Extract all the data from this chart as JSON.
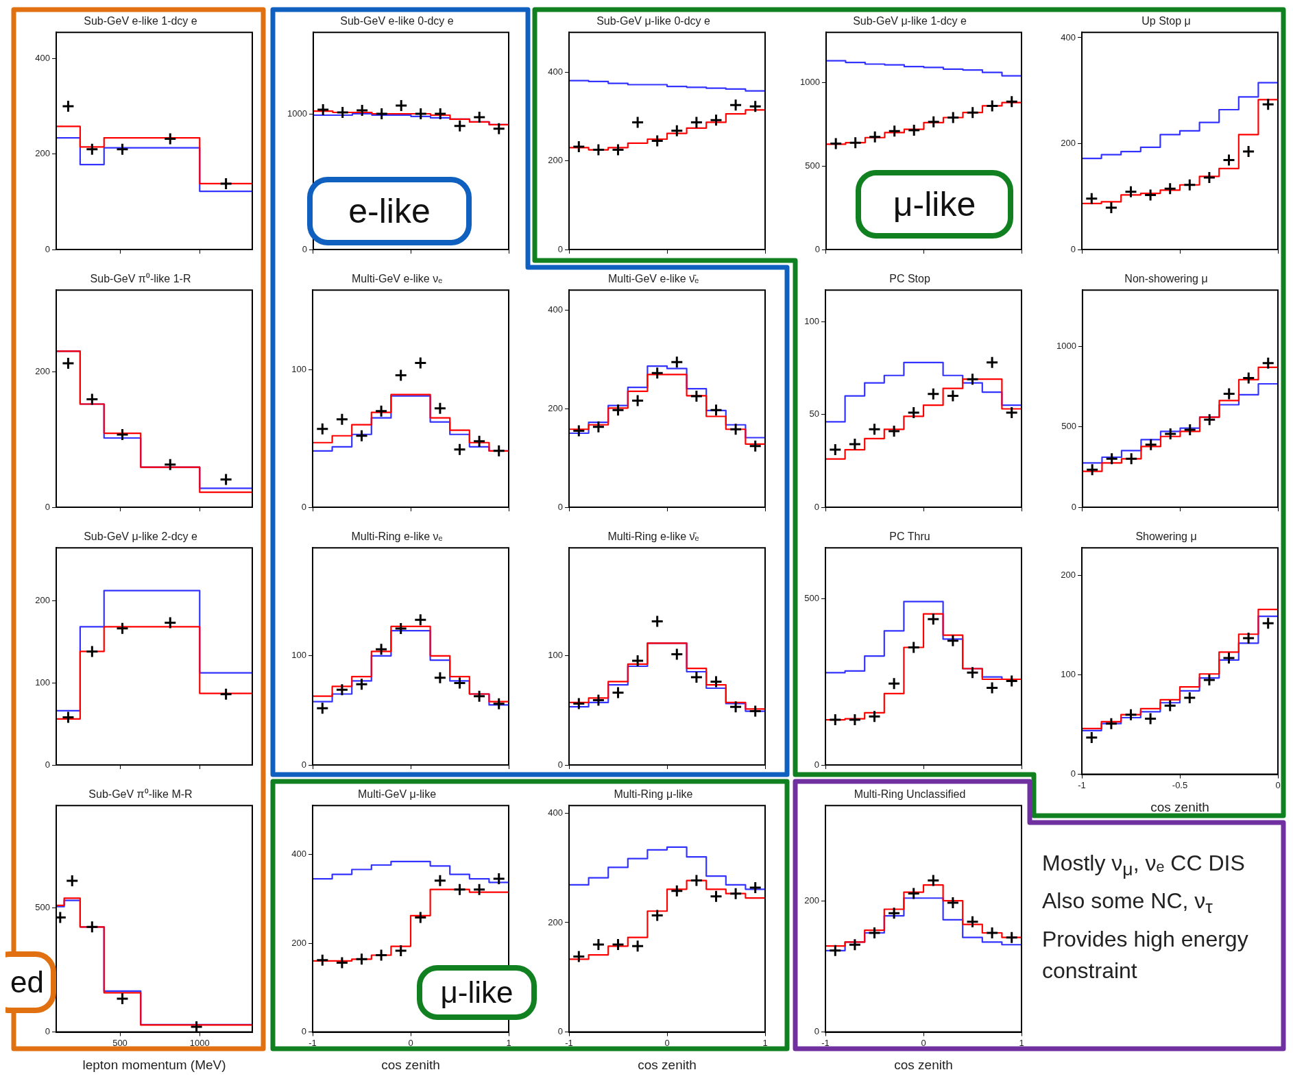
{
  "chart_data": [
    {
      "type": "histogram",
      "title": "Sub-GeV e-like 1-dcy e",
      "bins": [
        100,
        250,
        400,
        630,
        1000,
        1330
      ],
      "xlim": [
        100,
        1330
      ],
      "xticks": [
        500,
        1000
      ],
      "ylim": [
        0,
        455
      ],
      "yticks": [
        0,
        200,
        400
      ],
      "tick_labels": "y",
      "marker": "cross",
      "series": [
        {
          "color": "#3333ff",
          "values": [
            234,
            178,
            213,
            213,
            122
          ]
        },
        {
          "color": "#ff0000",
          "values": [
            258,
            215,
            234,
            234,
            138
          ]
        },
        {
          "type": "scatter",
          "color": "#000000",
          "x": [
            175,
            325,
            515,
            815,
            1165
          ],
          "values": [
            300,
            210,
            210,
            232,
            138
          ]
        }
      ]
    },
    {
      "type": "histogram",
      "title": "Sub-GeV e-like 0-dcy e",
      "bins": [
        -1,
        -0.8,
        -0.6,
        -0.4,
        -0.2,
        0,
        0.2,
        0.4,
        0.6,
        0.8,
        1
      ],
      "xlim": [
        -1,
        1
      ],
      "xticks": [
        -1,
        0,
        1
      ],
      "ylim": [
        0,
        1600
      ],
      "yticks": [
        0,
        1000
      ],
      "tick_labels": "y",
      "marker": "cross",
      "annotations": [
        "e-like"
      ],
      "series": [
        {
          "color": "#3333ff",
          "values": [
            990,
            990,
            1000,
            990,
            990,
            980,
            970,
            960,
            940,
            920
          ]
        },
        {
          "color": "#ff0000",
          "values": [
            1020,
            1010,
            1010,
            1000,
            1000,
            1000,
            990,
            960,
            940,
            920
          ]
        },
        {
          "type": "scatter",
          "color": "#000000",
          "x": [
            -0.9,
            -0.7,
            -0.5,
            -0.3,
            -0.1,
            0.1,
            0.3,
            0.5,
            0.7,
            0.9
          ],
          "values": [
            1030,
            1010,
            1025,
            1000,
            1060,
            1000,
            1000,
            910,
            975,
            890
          ]
        }
      ]
    },
    {
      "type": "histogram",
      "title": "Sub-GeV μ-like 0-dcy e",
      "bins": [
        -1,
        -0.8,
        -0.6,
        -0.4,
        -0.2,
        0,
        0.2,
        0.4,
        0.6,
        0.8,
        1
      ],
      "xlim": [
        -1,
        1
      ],
      "xticks": [
        -1,
        0,
        1
      ],
      "ylim": [
        0,
        490
      ],
      "yticks": [
        0,
        200,
        400
      ],
      "tick_labels": "y",
      "marker": "cross",
      "series": [
        {
          "color": "#3333ff",
          "values": [
            381,
            379,
            375,
            372,
            372,
            368,
            366,
            364,
            362,
            358
          ]
        },
        {
          "color": "#ff0000",
          "values": [
            230,
            225,
            230,
            240,
            249,
            262,
            274,
            287,
            306,
            315
          ]
        },
        {
          "type": "scatter",
          "color": "#000000",
          "x": [
            -0.9,
            -0.7,
            -0.5,
            -0.3,
            -0.1,
            0.1,
            0.3,
            0.5,
            0.7,
            0.9
          ],
          "values": [
            232,
            225,
            225,
            287,
            245,
            268,
            287,
            292,
            326,
            323
          ]
        }
      ]
    },
    {
      "type": "histogram",
      "title": "Sub-GeV μ-like 1-dcy e",
      "bins": [
        -1,
        -0.8,
        -0.6,
        -0.4,
        -0.2,
        0,
        0.2,
        0.4,
        0.6,
        0.8,
        1
      ],
      "xlim": [
        -1,
        1
      ],
      "xticks": [
        -1,
        0,
        1
      ],
      "ylim": [
        0,
        1300
      ],
      "yticks": [
        0,
        500,
        1000
      ],
      "tick_labels": "y",
      "marker": "cross",
      "annotations": [
        "μ-like"
      ],
      "series": [
        {
          "color": "#3333ff",
          "values": [
            1130,
            1120,
            1110,
            1105,
            1095,
            1090,
            1080,
            1075,
            1060,
            1040
          ]
        },
        {
          "color": "#ff0000",
          "values": [
            630,
            640,
            670,
            700,
            720,
            760,
            790,
            820,
            860,
            880
          ]
        },
        {
          "type": "scatter",
          "color": "#000000",
          "x": [
            -0.9,
            -0.7,
            -0.5,
            -0.3,
            -0.1,
            0.1,
            0.3,
            0.5,
            0.7,
            0.9
          ],
          "values": [
            634,
            639,
            674,
            709,
            714,
            764,
            790,
            820,
            860,
            885
          ]
        }
      ]
    },
    {
      "type": "histogram",
      "title": "Up Stop μ",
      "bins": [
        -1,
        -0.9,
        -0.8,
        -0.7,
        -0.6,
        -0.5,
        -0.4,
        -0.3,
        -0.2,
        -0.1,
        0
      ],
      "xlim": [
        -1,
        0
      ],
      "xticks": [
        -1,
        -0.5,
        0
      ],
      "ylim": [
        0,
        410
      ],
      "yticks": [
        0,
        200,
        400
      ],
      "tick_labels": "y",
      "marker": "cross",
      "series": [
        {
          "color": "#3333ff",
          "values": [
            172,
            179,
            185,
            193,
            217,
            224,
            240,
            264,
            288,
            315
          ]
        },
        {
          "color": "#ff0000",
          "values": [
            87,
            90,
            103,
            106,
            112,
            122,
            138,
            153,
            217,
            283
          ]
        },
        {
          "type": "scatter",
          "color": "#000000",
          "x": [
            -0.95,
            -0.85,
            -0.75,
            -0.65,
            -0.55,
            -0.45,
            -0.35,
            -0.25,
            -0.15,
            -0.05
          ],
          "values": [
            96,
            79,
            109,
            103,
            115,
            122,
            136,
            169,
            185,
            274
          ]
        }
      ]
    },
    {
      "type": "histogram",
      "title": "Sub-GeV π⁰-like 1-R",
      "bins": [
        100,
        250,
        400,
        630,
        1000,
        1330
      ],
      "xlim": [
        100,
        1330
      ],
      "xticks": [
        500,
        1000
      ],
      "ylim": [
        0,
        320
      ],
      "yticks": [
        0,
        200
      ],
      "tick_labels": "y",
      "marker": "cross",
      "series": [
        {
          "color": "#3333ff",
          "values": [
            230,
            152,
            102,
            59,
            28
          ]
        },
        {
          "color": "#ff0000",
          "values": [
            230,
            152,
            109,
            59,
            22
          ]
        },
        {
          "type": "scatter",
          "color": "#000000",
          "x": [
            175,
            325,
            515,
            815,
            1165
          ],
          "values": [
            212,
            159,
            107,
            63,
            41
          ]
        }
      ]
    },
    {
      "type": "histogram",
      "title": "Multi-GeV e-like νₑ",
      "bins": [
        -1,
        -0.8,
        -0.6,
        -0.4,
        -0.2,
        0,
        0.2,
        0.4,
        0.6,
        0.8,
        1
      ],
      "xlim": [
        -1,
        1
      ],
      "xticks": [
        -1,
        0,
        1
      ],
      "ylim": [
        0,
        158
      ],
      "yticks": [
        0,
        100
      ],
      "tick_labels": "y",
      "marker": "cross",
      "series": [
        {
          "color": "#3333ff",
          "values": [
            41,
            44,
            53,
            65,
            81,
            81,
            62,
            53,
            44,
            41
          ]
        },
        {
          "color": "#ff0000",
          "values": [
            47,
            52,
            60,
            69,
            82,
            82,
            65,
            56,
            47,
            41
          ]
        },
        {
          "type": "scatter",
          "color": "#000000",
          "x": [
            -0.9,
            -0.7,
            -0.5,
            -0.3,
            -0.1,
            0.1,
            0.3,
            0.5,
            0.7,
            0.9
          ],
          "values": [
            57,
            64,
            52,
            70,
            96,
            105,
            72,
            42,
            48,
            41
          ]
        }
      ]
    },
    {
      "type": "histogram",
      "title": "Multi-GeV e-like ν̄ₑ",
      "bins": [
        -1,
        -0.8,
        -0.6,
        -0.4,
        -0.2,
        0,
        0.2,
        0.4,
        0.6,
        0.8,
        1
      ],
      "xlim": [
        -1,
        1
      ],
      "xticks": [
        -1,
        0,
        1
      ],
      "ylim": [
        0,
        440
      ],
      "yticks": [
        0,
        200,
        400
      ],
      "tick_labels": "y",
      "marker": "cross",
      "series": [
        {
          "color": "#3333ff",
          "values": [
            150,
            172,
            206,
            243,
            286,
            281,
            240,
            196,
            167,
            141
          ]
        },
        {
          "color": "#ff0000",
          "values": [
            158,
            167,
            201,
            235,
            269,
            269,
            226,
            184,
            158,
            128
          ]
        },
        {
          "type": "scatter",
          "color": "#000000",
          "x": [
            -0.9,
            -0.7,
            -0.5,
            -0.3,
            -0.1,
            0.1,
            0.3,
            0.5,
            0.7,
            0.9
          ],
          "values": [
            155,
            163,
            197,
            216,
            272,
            294,
            225,
            197,
            158,
            124
          ]
        }
      ]
    },
    {
      "type": "histogram",
      "title": "PC Stop",
      "bins": [
        -1,
        -0.8,
        -0.6,
        -0.4,
        -0.2,
        0,
        0.2,
        0.4,
        0.6,
        0.8,
        1
      ],
      "xlim": [
        -1,
        1
      ],
      "xticks": [
        -1,
        0,
        1
      ],
      "ylim": [
        0,
        117
      ],
      "yticks": [
        0,
        50,
        100
      ],
      "tick_labels": "y",
      "marker": "cross",
      "series": [
        {
          "color": "#3333ff",
          "values": [
            46,
            60,
            67,
            71,
            78,
            78,
            71,
            67,
            62,
            55
          ]
        },
        {
          "color": "#ff0000",
          "values": [
            26,
            31,
            37,
            42,
            49,
            55,
            64,
            69,
            69,
            53
          ]
        },
        {
          "type": "scatter",
          "color": "#000000",
          "x": [
            -0.9,
            -0.7,
            -0.5,
            -0.3,
            -0.1,
            0.1,
            0.3,
            0.5,
            0.7,
            0.9
          ],
          "values": [
            31,
            34,
            42,
            41,
            51,
            61,
            60,
            69,
            78,
            51
          ]
        }
      ]
    },
    {
      "type": "histogram",
      "title": "Non-showering μ",
      "bins": [
        -1,
        -0.9,
        -0.8,
        -0.7,
        -0.6,
        -0.5,
        -0.4,
        -0.3,
        -0.2,
        -0.1,
        0
      ],
      "xlim": [
        -1,
        0
      ],
      "xticks": [
        -1,
        -0.5,
        0
      ],
      "ylim": [
        0,
        1350
      ],
      "yticks": [
        0,
        500,
        1000
      ],
      "tick_labels": "y",
      "marker": "cross",
      "series": [
        {
          "color": "#3333ff",
          "values": [
            275,
            311,
            352,
            420,
            471,
            492,
            560,
            637,
            699,
            767
          ]
        },
        {
          "color": "#ff0000",
          "values": [
            223,
            275,
            301,
            378,
            440,
            471,
            560,
            663,
            793,
            870
          ]
        },
        {
          "type": "scatter",
          "color": "#000000",
          "x": [
            -0.95,
            -0.85,
            -0.75,
            -0.65,
            -0.55,
            -0.45,
            -0.35,
            -0.25,
            -0.15,
            -0.05
          ],
          "values": [
            233,
            301,
            301,
            389,
            456,
            482,
            544,
            705,
            803,
            896
          ]
        }
      ]
    },
    {
      "type": "histogram",
      "title": "Sub-GeV μ-like 2-dcy e",
      "bins": [
        100,
        250,
        400,
        630,
        1000,
        1330
      ],
      "xlim": [
        100,
        1330
      ],
      "xticks": [
        500,
        1000
      ],
      "ylim": [
        0,
        264
      ],
      "yticks": [
        0,
        100,
        200
      ],
      "tick_labels": "y",
      "marker": "cross",
      "series": [
        {
          "color": "#3333ff",
          "values": [
            66,
            168,
            212,
            212,
            112
          ]
        },
        {
          "color": "#ff0000",
          "values": [
            56,
            138,
            168,
            168,
            87
          ]
        },
        {
          "type": "scatter",
          "color": "#000000",
          "x": [
            175,
            325,
            515,
            815,
            1165
          ],
          "values": [
            58,
            138,
            166,
            173,
            86
          ]
        }
      ]
    },
    {
      "type": "histogram",
      "title": "Multi-Ring e-like νₑ",
      "bins": [
        -1,
        -0.8,
        -0.6,
        -0.4,
        -0.2,
        0,
        0.2,
        0.4,
        0.6,
        0.8,
        1
      ],
      "xlim": [
        -1,
        1
      ],
      "xticks": [
        -1,
        0,
        1
      ],
      "ylim": [
        0,
        199
      ],
      "yticks": [
        0,
        100
      ],
      "tick_labels": "y",
      "marker": "cross",
      "series": [
        {
          "color": "#3333ff",
          "values": [
            58,
            65,
            77,
            100,
            123,
            123,
            96,
            77,
            65,
            55
          ]
        },
        {
          "color": "#ff0000",
          "values": [
            63,
            72,
            81,
            104,
            127,
            127,
            100,
            81,
            65,
            58
          ]
        },
        {
          "type": "scatter",
          "color": "#000000",
          "x": [
            -0.9,
            -0.7,
            -0.5,
            -0.3,
            -0.1,
            0.1,
            0.3,
            0.5,
            0.7,
            0.9
          ],
          "values": [
            52,
            69,
            74,
            106,
            125,
            133,
            80,
            75,
            63,
            56
          ]
        }
      ]
    },
    {
      "type": "histogram",
      "title": "Multi-Ring e-like ν̄ₑ",
      "bins": [
        -1,
        -0.8,
        -0.6,
        -0.4,
        -0.2,
        0,
        0.2,
        0.4,
        0.6,
        0.8,
        1
      ],
      "xlim": [
        -1,
        1
      ],
      "xticks": [
        -1,
        0,
        1
      ],
      "ylim": [
        0,
        198
      ],
      "yticks": [
        0,
        100
      ],
      "tick_labels": "y",
      "marker": "cross",
      "series": [
        {
          "color": "#3333ff",
          "values": [
            53,
            57,
            73,
            90,
            111,
            111,
            85,
            70,
            56,
            49
          ]
        },
        {
          "color": "#ff0000",
          "values": [
            57,
            61,
            76,
            92,
            111,
            111,
            88,
            73,
            57,
            51
          ]
        },
        {
          "type": "scatter",
          "color": "#000000",
          "x": [
            -0.9,
            -0.7,
            -0.5,
            -0.3,
            -0.1,
            0.1,
            0.3,
            0.5,
            0.7,
            0.9
          ],
          "values": [
            56,
            59,
            66,
            95,
            131,
            101,
            80,
            76,
            53,
            49
          ]
        }
      ]
    },
    {
      "type": "histogram",
      "title": "PC Thru",
      "bins": [
        -1,
        -0.8,
        -0.6,
        -0.4,
        -0.2,
        0,
        0.2,
        0.4,
        0.6,
        0.8,
        1
      ],
      "xlim": [
        -1,
        1
      ],
      "xticks": [
        -1,
        0,
        1
      ],
      "ylim": [
        0,
        654
      ],
      "yticks": [
        0,
        500
      ],
      "tick_labels": "y",
      "marker": "cross",
      "series": [
        {
          "color": "#3333ff",
          "values": [
            278,
            283,
            328,
            404,
            492,
            492,
            379,
            290,
            265,
            258
          ]
        },
        {
          "color": "#ff0000",
          "values": [
            136,
            139,
            157,
            215,
            354,
            455,
            391,
            290,
            258,
            258
          ]
        },
        {
          "type": "scatter",
          "color": "#000000",
          "x": [
            -0.9,
            -0.7,
            -0.5,
            -0.3,
            -0.1,
            0.1,
            0.3,
            0.5,
            0.7,
            0.9
          ],
          "values": [
            136,
            136,
            146,
            245,
            354,
            439,
            374,
            278,
            232,
            253
          ]
        }
      ]
    },
    {
      "type": "histogram",
      "title": "Showering μ",
      "xlabel": "cos zenith",
      "bins": [
        -1,
        -0.9,
        -0.8,
        -0.7,
        -0.6,
        -0.5,
        -0.4,
        -0.3,
        -0.2,
        -0.1,
        0
      ],
      "xlim": [
        -1,
        0
      ],
      "xticks": [
        -1,
        -0.5,
        0
      ],
      "ylim": [
        0,
        228
      ],
      "yticks": [
        0,
        100,
        200
      ],
      "marker": "cross",
      "series": [
        {
          "color": "#3333ff",
          "values": [
            44,
            51,
            57,
            63,
            72,
            84,
            97,
            115,
            132,
            159
          ]
        },
        {
          "color": "#ff0000",
          "values": [
            46,
            53,
            60,
            66,
            75,
            88,
            101,
            123,
            141,
            166
          ]
        },
        {
          "type": "scatter",
          "color": "#000000",
          "x": [
            -0.95,
            -0.85,
            -0.75,
            -0.65,
            -0.55,
            -0.45,
            -0.35,
            -0.25,
            -0.15,
            -0.05
          ],
          "values": [
            37,
            51,
            60,
            56,
            69,
            77,
            95,
            117,
            137,
            152
          ]
        }
      ]
    },
    {
      "type": "histogram",
      "title": "Sub-GeV π⁰-like M-R",
      "xlabel": "lepton momentum (MeV)",
      "bins": [
        100,
        150,
        250,
        400,
        630,
        1330
      ],
      "xlim": [
        100,
        1330
      ],
      "xticks": [
        500,
        1000
      ],
      "ylim": [
        0,
        912
      ],
      "yticks": [
        0,
        500
      ],
      "marker": "cross",
      "annotations": [
        "ed"
      ],
      "series": [
        {
          "color": "#3333ff",
          "values": [
            505,
            530,
            423,
            165,
            30
          ]
        },
        {
          "color": "#ff0000",
          "values": [
            510,
            539,
            423,
            158,
            28
          ]
        },
        {
          "type": "scatter",
          "color": "#000000",
          "x": [
            125,
            200,
            325,
            515,
            980
          ],
          "values": [
            461,
            609,
            423,
            134,
            21
          ]
        }
      ]
    },
    {
      "type": "histogram",
      "title": "Multi-GeV μ-like",
      "xlabel": "cos zenith",
      "bins": [
        -1,
        -0.8,
        -0.6,
        -0.4,
        -0.2,
        0,
        0.2,
        0.4,
        0.6,
        0.8,
        1
      ],
      "xlim": [
        -1,
        1
      ],
      "xticks": [
        -1,
        0,
        1
      ],
      "ylim": [
        0,
        510
      ],
      "yticks": [
        0,
        200,
        400
      ],
      "marker": "cross",
      "annotations": [
        "μ-like"
      ],
      "series": [
        {
          "color": "#3333ff",
          "values": [
            345,
            355,
            366,
            376,
            384,
            384,
            374,
            355,
            345,
            337
          ]
        },
        {
          "color": "#ff0000",
          "values": [
            160,
            160,
            164,
            173,
            193,
            262,
            321,
            321,
            315,
            315
          ]
        },
        {
          "type": "scatter",
          "color": "#000000",
          "x": [
            -0.9,
            -0.7,
            -0.5,
            -0.3,
            -0.1,
            0.1,
            0.3,
            0.5,
            0.7,
            0.9
          ],
          "values": [
            162,
            156,
            164,
            173,
            183,
            258,
            341,
            321,
            321,
            345
          ]
        }
      ]
    },
    {
      "type": "histogram",
      "title": "Multi-Ring μ-like",
      "xlabel": "cos zenith",
      "bins": [
        -1,
        -0.8,
        -0.6,
        -0.4,
        -0.2,
        0,
        0.2,
        0.4,
        0.6,
        0.8,
        1
      ],
      "xlim": [
        -1,
        1
      ],
      "xticks": [
        -1,
        0,
        1
      ],
      "ylim": [
        0,
        414
      ],
      "yticks": [
        0,
        200,
        400
      ],
      "marker": "cross",
      "series": [
        {
          "color": "#3333ff",
          "values": [
            269,
            282,
            301,
            317,
            333,
            338,
            320,
            285,
            269,
            261
          ]
        },
        {
          "color": "#ff0000",
          "values": [
            133,
            141,
            157,
            173,
            221,
            261,
            277,
            261,
            253,
            245
          ]
        },
        {
          "type": "scatter",
          "color": "#000000",
          "x": [
            -0.9,
            -0.7,
            -0.5,
            -0.3,
            -0.1,
            0.1,
            0.3,
            0.5,
            0.7,
            0.9
          ],
          "values": [
            138,
            160,
            160,
            157,
            213,
            258,
            277,
            248,
            253,
            264
          ]
        }
      ]
    },
    {
      "type": "histogram",
      "title": "Multi-Ring Unclassified",
      "xlabel": "cos zenith",
      "bins": [
        -1,
        -0.8,
        -0.6,
        -0.4,
        -0.2,
        0,
        0.2,
        0.4,
        0.6,
        0.8,
        1
      ],
      "xlim": [
        -1,
        1
      ],
      "xticks": [
        -1,
        0,
        1
      ],
      "ylim": [
        0,
        345
      ],
      "yticks": [
        0,
        200
      ],
      "marker": "cross",
      "series": [
        {
          "color": "#3333ff",
          "values": [
            124,
            137,
            151,
            177,
            204,
            204,
            171,
            144,
            137,
            133
          ]
        },
        {
          "color": "#ff0000",
          "values": [
            131,
            137,
            155,
            187,
            213,
            224,
            200,
            164,
            151,
            144
          ]
        },
        {
          "type": "scatter",
          "color": "#000000",
          "x": [
            -0.9,
            -0.7,
            -0.5,
            -0.3,
            -0.1,
            0.1,
            0.3,
            0.5,
            0.7,
            0.9
          ],
          "values": [
            124,
            133,
            151,
            181,
            211,
            231,
            197,
            168,
            151,
            144
          ]
        }
      ]
    },
    {
      "type": "other",
      "annotations": [
        "Mostly ν$_{μ}$, νₑ CC DIS",
        "Also some NC, ν$_{τ}$",
        "Provides high energy constraint"
      ]
    }
  ]
}
